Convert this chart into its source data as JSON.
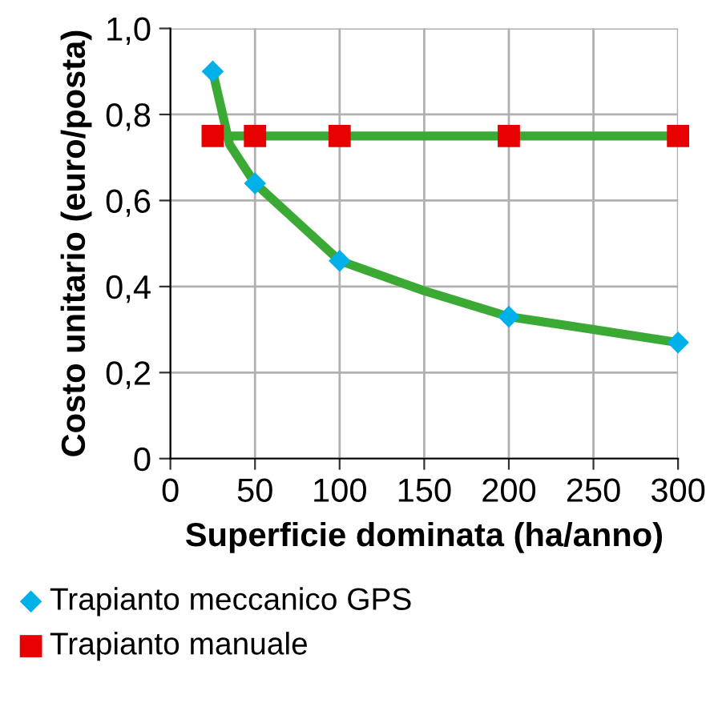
{
  "chart_data": {
    "type": "scatter",
    "xlabel": "Superficie dominata (ha/anno)",
    "ylabel": "Costo unitario (euro/posta)",
    "xlim": [
      0,
      300
    ],
    "xticks": [
      0,
      50,
      100,
      150,
      200,
      250,
      300
    ],
    "ylim": [
      0,
      1.0
    ],
    "yticks": [
      0,
      {
        "value": 0.2,
        "label": "0,2"
      },
      {
        "value": 0.4,
        "label": "0,4"
      },
      {
        "value": 0.6,
        "label": "0,6"
      },
      {
        "value": 0.8,
        "label": "0,8"
      },
      {
        "value": 1.0,
        "label": "1,0"
      }
    ],
    "grid": true,
    "legend": "bottom",
    "series": [
      {
        "type": "line",
        "color": "#3aaa35",
        "marker": "none",
        "x": [
          25,
          35,
          50,
          75,
          100,
          150,
          200,
          250,
          300
        ],
        "values": [
          0.9,
          0.73,
          0.64,
          0.55,
          0.46,
          0.39,
          0.33,
          0.3,
          0.27
        ]
      },
      {
        "type": "line",
        "color": "#3aaa35",
        "marker": "none",
        "x": [
          25,
          300
        ],
        "values": [
          0.75,
          0.75
        ]
      },
      {
        "name": "Trapianto meccanico GPS",
        "color": "#00b0e8",
        "marker": "diamond",
        "x": [
          25,
          50,
          100,
          200,
          300
        ],
        "values": [
          0.9,
          0.64,
          0.46,
          0.33,
          0.27
        ]
      },
      {
        "name": "Trapianto manuale",
        "color": "#e60000",
        "marker": "square",
        "x": [
          25,
          50,
          100,
          200,
          300
        ],
        "values": [
          0.75,
          0.75,
          0.75,
          0.75,
          0.75
        ]
      }
    ]
  }
}
